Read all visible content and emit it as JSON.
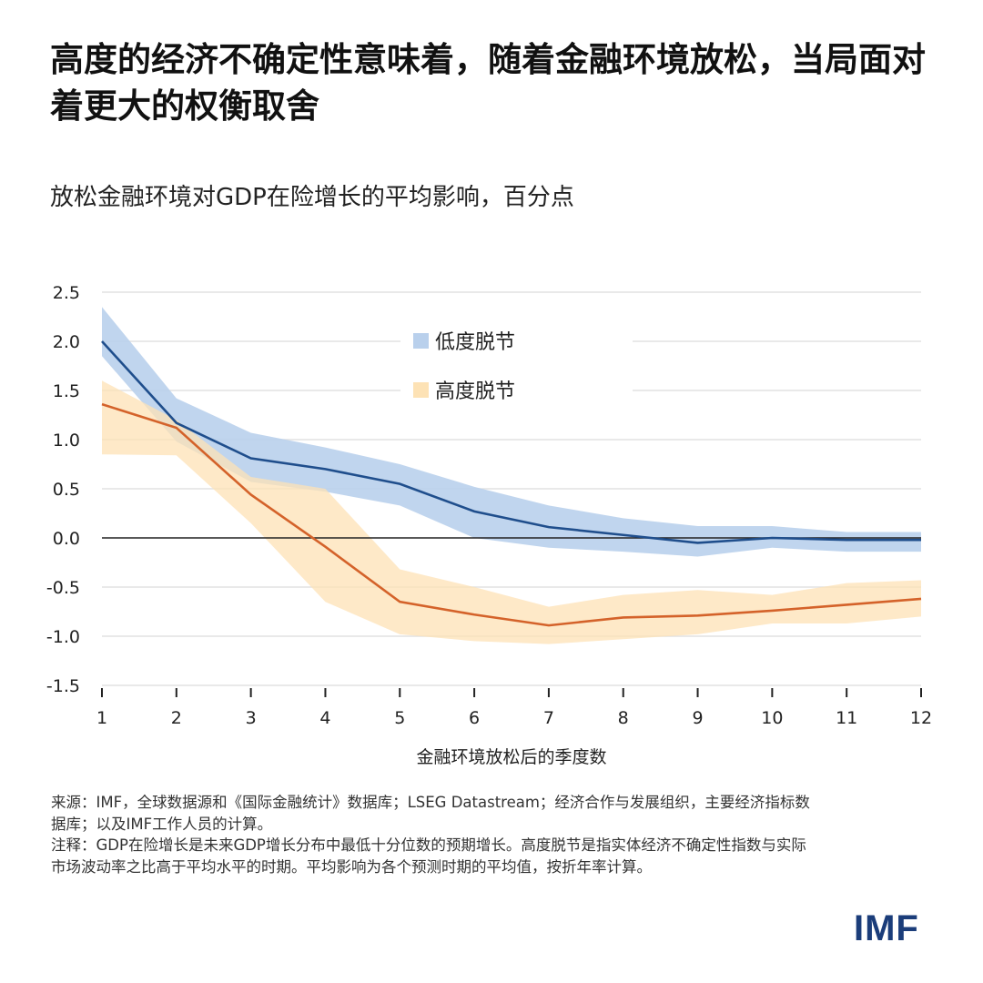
{
  "title": "高度的经济不确定性意味着，随着金融环境放松，当局面对着更大的权衡取舍",
  "subtitle": "放松金融环境对GDP在险增长的平均影响，百分点",
  "notes": {
    "source": "来源：IMF，全球数据源和《国际金融统计》数据库；LSEG Datastream；经济合作与发展组织，主要经济指标数据库；以及IMF工作人员的计算。",
    "note": "注释：GDP在险增长是未来GDP增长分布中最低十分位数的预期增长。高度脱节是指实体经济不确定性指数与实际市场波动率之比高于平均水平的时期。平均影响为各个预测时期的平均值，按折年率计算。"
  },
  "logo": "IMF",
  "chart_data": {
    "type": "line",
    "xlabel": "金融环境放松后的季度数",
    "ylabel": "",
    "x": [
      1,
      2,
      3,
      4,
      5,
      6,
      7,
      8,
      9,
      10,
      11,
      12
    ],
    "xticks": [
      "1",
      "2",
      "3",
      "4",
      "5",
      "6",
      "7",
      "8",
      "9",
      "10",
      "11",
      "12"
    ],
    "ylim": [
      -1.5,
      2.5
    ],
    "yticks": [
      "2.5",
      "2.0",
      "1.5",
      "1.0",
      "0.5",
      "0.0",
      "-0.5",
      "-1.0",
      "-1.5"
    ],
    "ytick_values": [
      2.5,
      2.0,
      1.5,
      1.0,
      0.5,
      0.0,
      -0.5,
      -1.0,
      -1.5
    ],
    "grid": true,
    "legend_placement": "top-center",
    "series": [
      {
        "name": "低度脱节",
        "line_color": "#1f4e8c",
        "band_color": "#b9d0ec",
        "values": [
          2.0,
          1.17,
          0.81,
          0.7,
          0.55,
          0.27,
          0.11,
          0.03,
          -0.05,
          0.0,
          -0.02,
          -0.02
        ],
        "upper": [
          2.35,
          1.42,
          1.07,
          0.92,
          0.75,
          0.52,
          0.33,
          0.2,
          0.12,
          0.12,
          0.06,
          0.06
        ],
        "lower": [
          1.85,
          0.98,
          0.57,
          0.47,
          0.33,
          0.0,
          -0.1,
          -0.14,
          -0.19,
          -0.1,
          -0.14,
          -0.14
        ]
      },
      {
        "name": "高度脱节",
        "line_color": "#d4622a",
        "band_color": "#fde2b5",
        "values": [
          1.36,
          1.12,
          0.44,
          -0.09,
          -0.65,
          -0.78,
          -0.89,
          -0.81,
          -0.79,
          -0.74,
          -0.68,
          -0.62
        ],
        "upper": [
          1.6,
          1.2,
          0.62,
          0.5,
          -0.32,
          -0.5,
          -0.7,
          -0.58,
          -0.53,
          -0.58,
          -0.46,
          -0.43
        ],
        "lower": [
          0.85,
          0.84,
          0.15,
          -0.65,
          -0.98,
          -1.05,
          -1.08,
          -1.03,
          -0.98,
          -0.87,
          -0.87,
          -0.8
        ]
      }
    ]
  }
}
